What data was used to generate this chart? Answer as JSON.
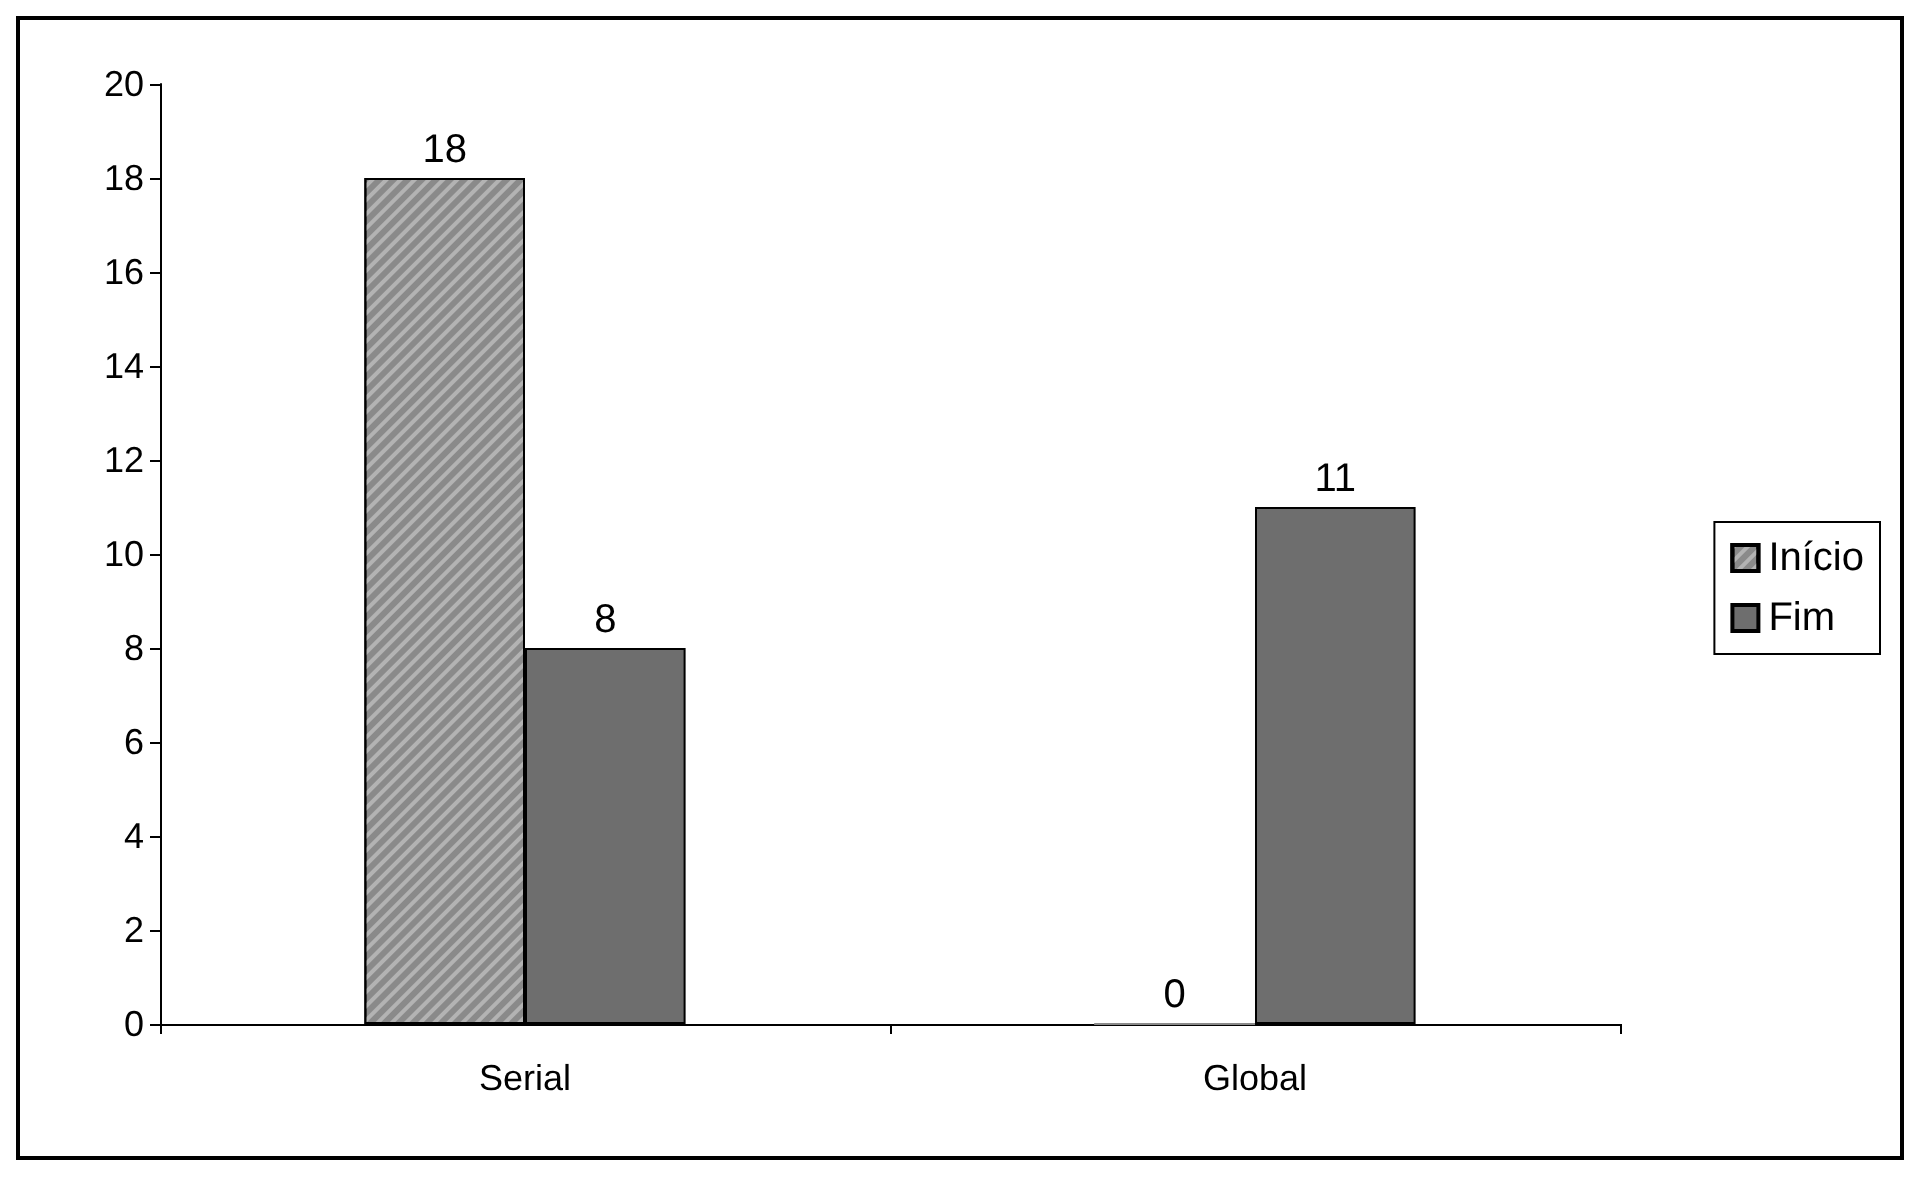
{
  "chart_data": {
    "type": "bar",
    "categories": [
      "Serial",
      "Global"
    ],
    "series": [
      {
        "name": "Início",
        "color": "#8a8a8a",
        "values": [
          18,
          0
        ]
      },
      {
        "name": "Fim",
        "color": "#6e6e6e",
        "values": [
          8,
          11
        ]
      }
    ],
    "ylim": [
      0,
      20
    ],
    "yticks": [
      0,
      2,
      4,
      6,
      8,
      10,
      12,
      14,
      16,
      18,
      20
    ],
    "grid": false,
    "legend": "right",
    "data_labels": true
  }
}
